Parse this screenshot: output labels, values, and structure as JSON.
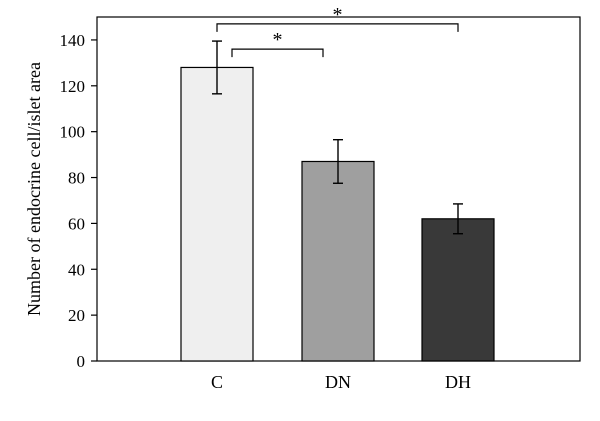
{
  "chart_data": {
    "type": "bar",
    "categories": [
      "C",
      "DN",
      "DH"
    ],
    "values": [
      128,
      87,
      62
    ],
    "error": [
      11.5,
      9.5,
      6.5
    ],
    "colors": [
      "#efefef",
      "#9f9f9f",
      "#393939"
    ],
    "xlabel": "",
    "ylabel": "Number of endocrine cell/islet area",
    "ylim": [
      0,
      150
    ],
    "yticks": [
      0,
      20,
      40,
      60,
      80,
      100,
      120,
      140
    ],
    "grid": false,
    "significance": [
      {
        "from": "C",
        "to": "DN",
        "y": 136,
        "label": "*"
      },
      {
        "from": "C",
        "to": "DH",
        "y": 147,
        "label": "*"
      }
    ]
  }
}
